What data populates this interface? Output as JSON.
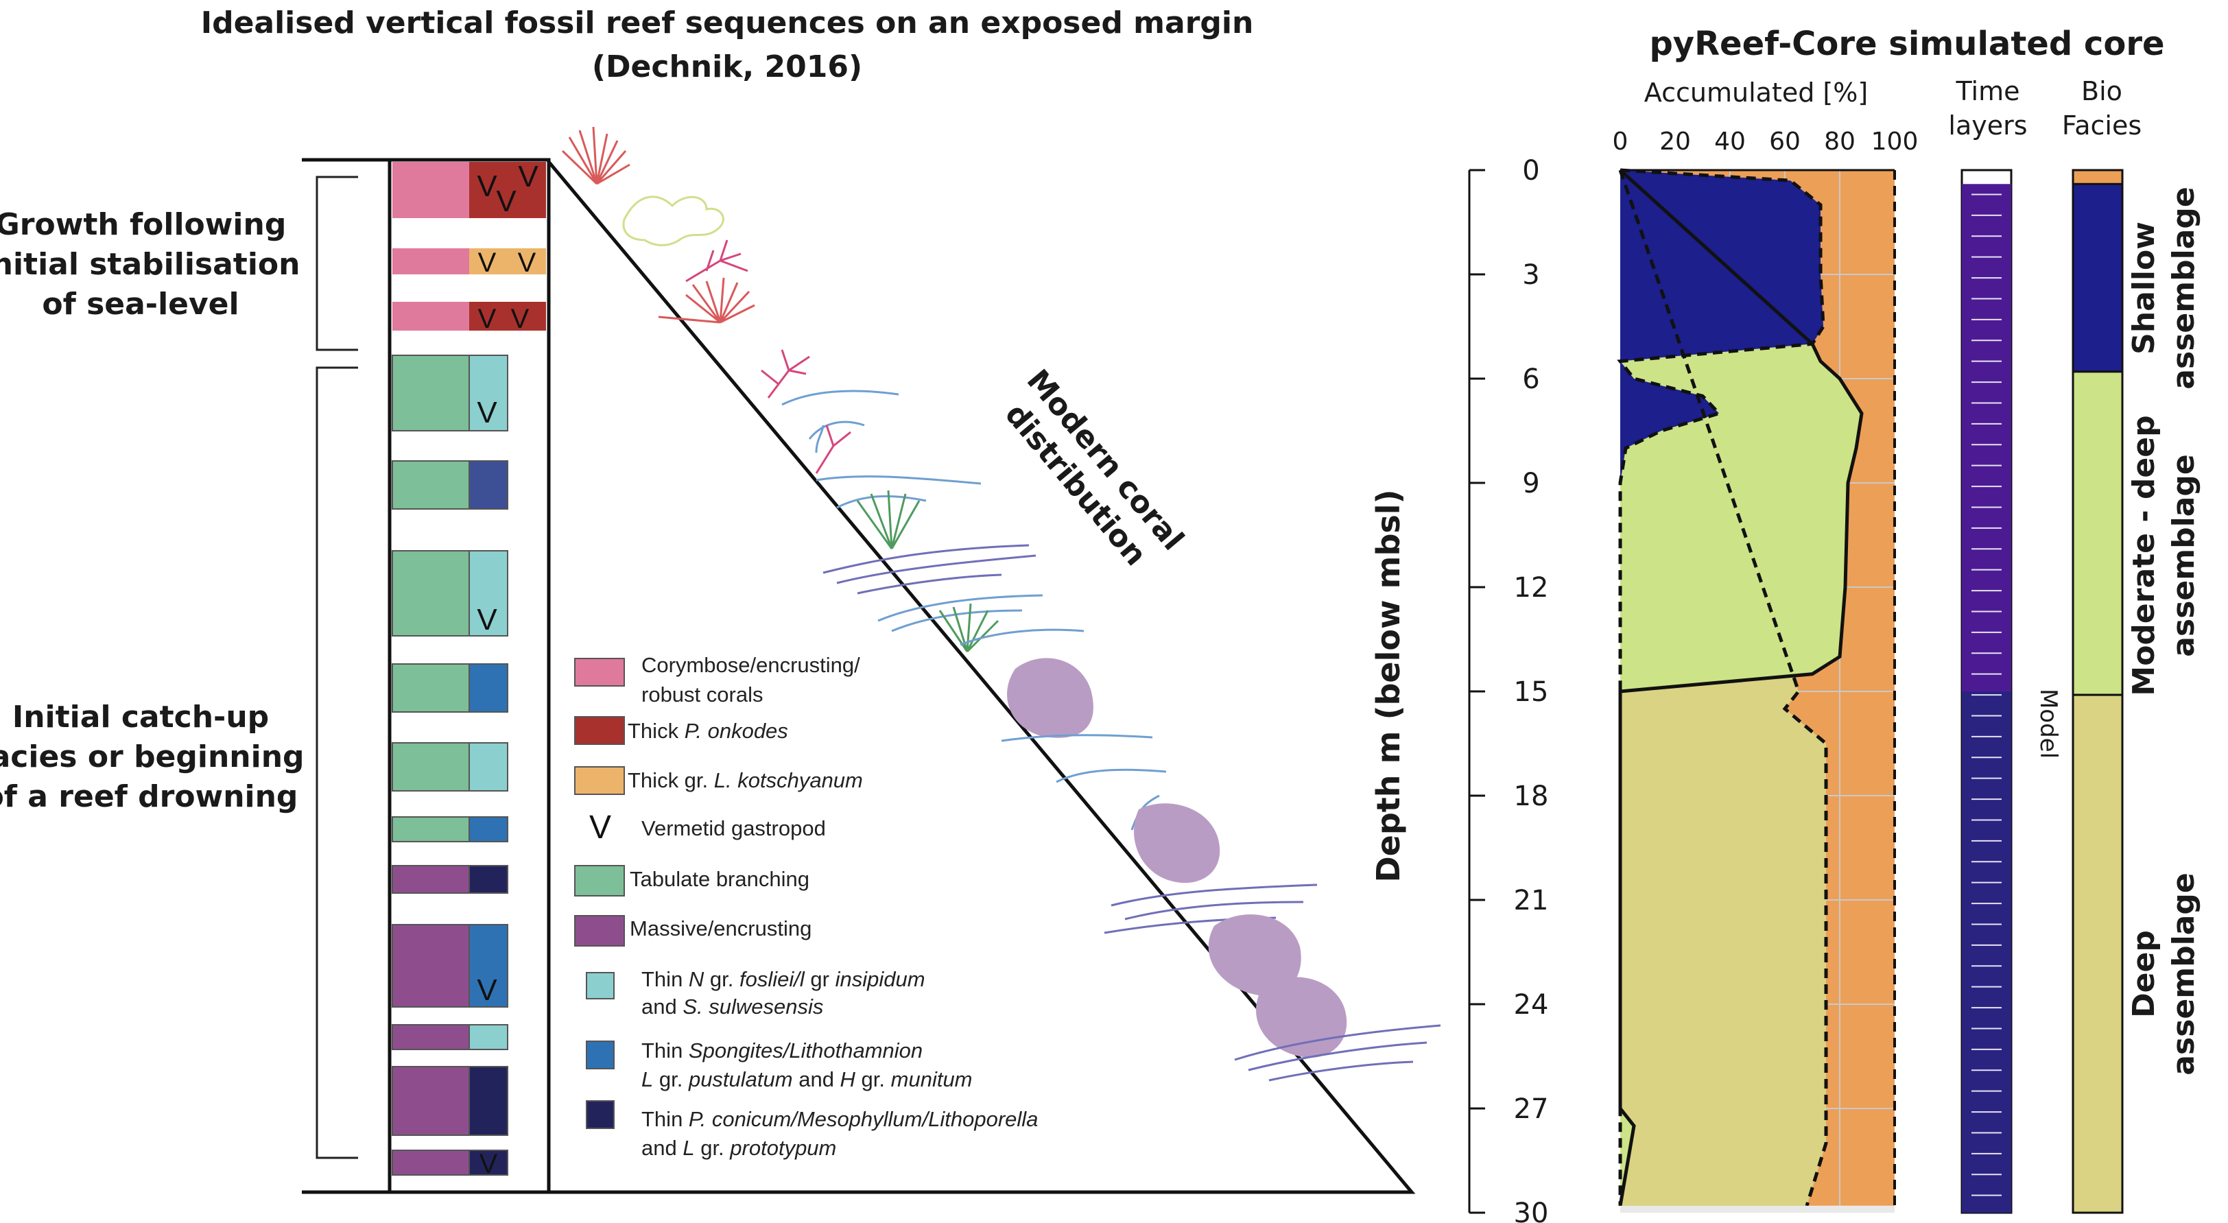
{
  "left": {
    "title_line1": "Idealised vertical fossil reef sequences on an exposed margin",
    "title_line2": "(Dechnik, 2016)",
    "group_top": [
      "Growth following",
      "initial stabilisation",
      "of sea-level"
    ],
    "group_bottom": [
      "Initial catch-up",
      "facies or beginning",
      "of a reef drowning"
    ],
    "diagonal_label": [
      "Modern coral",
      "distribution"
    ],
    "vermetid_symbol": "V",
    "legend": [
      {
        "color": "#e07a9c",
        "line1": "Corymbose/encrusting/",
        "line2": "robust corals",
        "italic": ""
      },
      {
        "color": "#a8312d",
        "prefix": "Thick ",
        "italic": "P. onkodes",
        "suffix": ""
      },
      {
        "color": "#ecb46a",
        "prefix": "Thick gr. ",
        "italic": "L. kotschyanum",
        "suffix": ""
      },
      {
        "symbol": "V",
        "text": "Vermetid gastropod"
      },
      {
        "color": "#7dbf98",
        "text": "Tabulate branching"
      },
      {
        "color": "#8e4e8e",
        "text": "Massive/encrusting"
      },
      {
        "color": "#8ccfcf",
        "l1a": "Thin ",
        "l1b": "N",
        "l1c": " gr. ",
        "l1d": "fosliei/l",
        "l1e": " gr ",
        "l1f": "insipidum",
        "l2a": "and ",
        "l2b": "S. sulwesensis"
      },
      {
        "color": "#2f72b4",
        "l1a": "Thin ",
        "l1b": "Spongites/Lithothamnion",
        "l2a": "L",
        "l2b": " gr. ",
        "l2c": "pustulatum",
        "l2d": " and ",
        "l2e": "H",
        "l2f": " gr. ",
        "l2g": "munitum"
      },
      {
        "color": "#23235c",
        "l1a": "Thin ",
        "l1b": "P. conicum/Mesophyllum/Lithoporella",
        "l2a": "and ",
        "l2b": "L",
        "l2c": " gr. ",
        "l2d": "prototypum"
      }
    ]
  },
  "depth_axis": {
    "label": "Depth m (below mbsl)",
    "ticks": [
      "0",
      "3",
      "6",
      "9",
      "12",
      "15",
      "18",
      "21",
      "24",
      "27",
      "30"
    ]
  },
  "right": {
    "title": "pyReef-Core simulated core",
    "accumulated_header": "Accumulated [%]",
    "x_ticks": [
      "0",
      "20",
      "40",
      "60",
      "80",
      "100"
    ],
    "time_header": [
      "Time",
      "layers"
    ],
    "bio_header": [
      "Bio",
      "Facies"
    ],
    "model_label": "Model",
    "facies_labels": {
      "shallow": [
        "Shallow",
        "assemblage"
      ],
      "moderate": [
        "Moderate - deep",
        "assemblage"
      ],
      "deep": [
        "Deep",
        "assemblage"
      ]
    }
  },
  "colors": {
    "corymbose": "#e07a9c",
    "thick_onkodes": "#a8312d",
    "thick_kotschyanum": "#ecb46a",
    "tabulate": "#7dbf98",
    "massive": "#8e4e8e",
    "thin_nfosliei": "#8ccfcf",
    "thin_spongites": "#2f72b4",
    "thin_pconicum": "#23235c",
    "shallow_fill": "#1c1f8c",
    "moderate_fill": "#cde387",
    "deep_fill": "#d9d383",
    "orange_fill": "#ec9f57",
    "time_layers": "#4c1b93",
    "coral_purple": "#b99cc4"
  },
  "chart_data": {
    "type": "area",
    "xlabel": "Accumulated [%]",
    "ylabel": "Depth m (below mbsl)",
    "xlim": [
      0,
      100
    ],
    "ylim": [
      0,
      30
    ],
    "series": [
      {
        "name": "Shallow assemblage",
        "depth": [
          0,
          0.3,
          1,
          3,
          4.5,
          5,
          5.5,
          6,
          6.5,
          7,
          7.5,
          8,
          9,
          29.8
        ],
        "cumulative": [
          0,
          62,
          73,
          73,
          74,
          70,
          0,
          5,
          30,
          36,
          15,
          2,
          0,
          0
        ]
      },
      {
        "name": "Moderate - deep assemblage",
        "depth": [
          0,
          5,
          5.5,
          6,
          7,
          8,
          9,
          12,
          14,
          14.5,
          15,
          27,
          27.5,
          29.8
        ],
        "cumulative": [
          0,
          70,
          73,
          80,
          88,
          86,
          83,
          82,
          80,
          70,
          0,
          0,
          5,
          0
        ]
      },
      {
        "name": "Deep assemblage",
        "depth": [
          0,
          15,
          15.5,
          16.5,
          17,
          27,
          28,
          29.8
        ],
        "cumulative": [
          0,
          65,
          60,
          75,
          75,
          75,
          75,
          68
        ]
      }
    ],
    "bio_facies": [
      {
        "name": "Shallow assemblage",
        "from": 0.4,
        "to": 5.8
      },
      {
        "name": "Moderate - deep assemblage",
        "from": 5.8,
        "to": 15.1
      },
      {
        "name": "Deep assemblage",
        "from": 15.1,
        "to": 30
      }
    ]
  }
}
